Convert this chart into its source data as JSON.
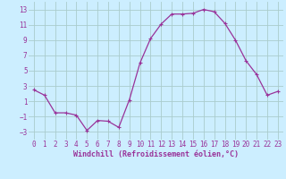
{
  "x": [
    0,
    1,
    2,
    3,
    4,
    5,
    6,
    7,
    8,
    9,
    10,
    11,
    12,
    13,
    14,
    15,
    16,
    17,
    18,
    19,
    20,
    21,
    22,
    23
  ],
  "y": [
    2.5,
    1.8,
    -0.5,
    -0.5,
    -0.8,
    -2.8,
    -1.5,
    -1.6,
    -2.4,
    1.2,
    6.0,
    9.2,
    11.1,
    12.4,
    12.4,
    12.5,
    13.0,
    12.7,
    11.2,
    9.0,
    6.3,
    4.5,
    1.8,
    2.3
  ],
  "line_color": "#993399",
  "marker": "+",
  "marker_size": 3,
  "marker_lw": 0.8,
  "line_width": 0.9,
  "bg_color": "#cceeff",
  "grid_color": "#aacccc",
  "xlabel": "Windchill (Refroidissement éolien,°C)",
  "xlabel_color": "#993399",
  "xlabel_fontsize": 6.0,
  "tick_color": "#993399",
  "tick_fontsize": 5.5,
  "ylim": [
    -4,
    14
  ],
  "xlim": [
    -0.5,
    23.5
  ],
  "yticks": [
    -3,
    -1,
    1,
    3,
    5,
    7,
    9,
    11,
    13
  ],
  "xticks": [
    0,
    1,
    2,
    3,
    4,
    5,
    6,
    7,
    8,
    9,
    10,
    11,
    12,
    13,
    14,
    15,
    16,
    17,
    18,
    19,
    20,
    21,
    22,
    23
  ]
}
